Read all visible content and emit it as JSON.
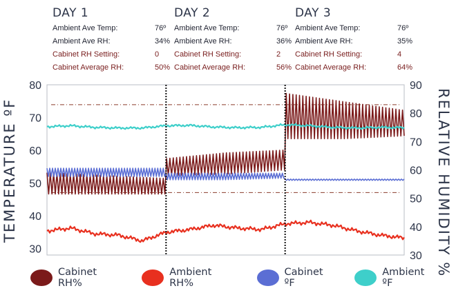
{
  "days": [
    {
      "title": "DAY 1",
      "stats": [
        {
          "label": "Ambient Ave Temp:",
          "value": "76º"
        },
        {
          "label": "Ambient Ave RH:",
          "value": "34%"
        },
        {
          "label": "Cabinet RH Setting:",
          "value": "0"
        },
        {
          "label": "Cabinet Average RH:",
          "value": "50%"
        }
      ]
    },
    {
      "title": "DAY 2",
      "stats": [
        {
          "label": "Ambient Ave Temp:",
          "value": "76º"
        },
        {
          "label": "Ambient Ave RH:",
          "value": "36%"
        },
        {
          "label": "Cabinet RH Setting:",
          "value": "2"
        },
        {
          "label": "Cabinet Average RH:",
          "value": "56%"
        }
      ]
    },
    {
      "title": "DAY 3",
      "stats": [
        {
          "label": "Ambient Ave Temp:",
          "value": "76º"
        },
        {
          "label": "Ambient Ave RH:",
          "value": "35%"
        },
        {
          "label": "Cabinet RH Setting:",
          "value": "4"
        },
        {
          "label": "Cabinet Average RH:",
          "value": "64%"
        }
      ]
    }
  ],
  "chart_data": {
    "type": "line",
    "x": [
      0,
      1,
      2,
      3
    ],
    "ylabel": "TEMPERATURE ºF",
    "ylabel_right": "RELATIVE HUMIDITY %",
    "ylim": [
      28,
      80
    ],
    "ylim_right": [
      30,
      90
    ],
    "yticks": [
      30,
      40,
      50,
      60,
      70,
      80
    ],
    "yticks_right": [
      30,
      40,
      50,
      60,
      70,
      80,
      90
    ],
    "day_boundaries": [
      1,
      2
    ],
    "reference_lines_right": [
      52,
      83
    ],
    "legend_position": "bottom",
    "grid": false,
    "colors": {
      "cabinet_rh": "#7b1a1a",
      "ambient_rh": "#e8301f",
      "cabinet_f": "#5b6ed4",
      "ambient_f": "#3ecfca",
      "reference": "#8a3a2a"
    },
    "series": [
      {
        "name": "Cabinet RH%",
        "axis": "right",
        "color": "#7b1a1a",
        "band": true,
        "x": [
          0,
          0.5,
          1,
          1.0,
          1.5,
          2,
          2.0,
          2.5,
          3
        ],
        "low": [
          51.5,
          51.5,
          51.5,
          58,
          58.5,
          60,
          71,
          71,
          72
        ],
        "high": [
          59,
          58,
          57,
          64,
          66,
          67,
          87,
          84,
          81
        ]
      },
      {
        "name": "Ambient RH%",
        "axis": "right",
        "color": "#e8301f",
        "x": [
          0,
          0.2,
          0.4,
          0.6,
          0.8,
          1.0,
          1.2,
          1.4,
          1.6,
          1.8,
          2.0,
          2.2,
          2.4,
          2.6,
          2.8,
          3.0
        ],
        "values": [
          38.5,
          39.5,
          37.5,
          37,
          35,
          38,
          39,
          40.5,
          39.5,
          39,
          41,
          41.5,
          40.5,
          38.5,
          37,
          36
        ]
      },
      {
        "name": "Cabinet ºF",
        "axis": "left",
        "color": "#5b6ed4",
        "band": true,
        "x": [
          0,
          0.5,
          1,
          1.0,
          1.5,
          2,
          2.0,
          2.5,
          3
        ],
        "low": [
          52,
          52,
          52,
          51,
          51,
          51.5,
          50.8,
          50.8,
          50.8
        ],
        "high": [
          54.5,
          54.5,
          54.5,
          53,
          53,
          53,
          51.2,
          51.2,
          51.2
        ]
      },
      {
        "name": "Ambient ºF",
        "axis": "left",
        "color": "#3ecfca",
        "x": [
          0,
          0.2,
          0.4,
          0.6,
          0.8,
          1.0,
          1.2,
          1.4,
          1.6,
          1.8,
          2.0,
          2.2,
          2.4,
          2.6,
          2.8,
          3.0
        ],
        "values": [
          67.2,
          67.5,
          67,
          66.8,
          66.8,
          67.5,
          67.6,
          67.1,
          66.9,
          67,
          67.8,
          67.5,
          67,
          66.8,
          67,
          66.9
        ]
      }
    ]
  },
  "legend": [
    {
      "label": "Cabinet RH%",
      "color": "#7b1a1a"
    },
    {
      "label": "Ambient RH%",
      "color": "#e8301f"
    },
    {
      "label": "Cabinet ºF",
      "color": "#5b6ed4"
    },
    {
      "label": "Ambient ºF",
      "color": "#3ecfca"
    }
  ]
}
